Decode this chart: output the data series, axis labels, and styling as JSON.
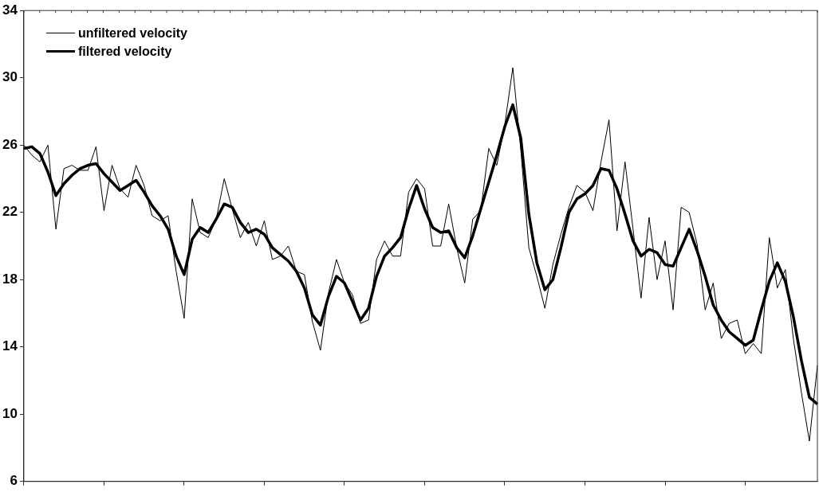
{
  "chart_data": {
    "type": "line",
    "categories": [
      null,
      null,
      null,
      null,
      null,
      null,
      null,
      null,
      null,
      null,
      null,
      null,
      null,
      null,
      null,
      null,
      null,
      null,
      null,
      null,
      null,
      null,
      null,
      null,
      null,
      null,
      null,
      null,
      null,
      null,
      null,
      null,
      null,
      null,
      null,
      null,
      null,
      null,
      null,
      null,
      null,
      null,
      null,
      null,
      null,
      null,
      null,
      null,
      null,
      null,
      null,
      null,
      null,
      null,
      null,
      null,
      null,
      null,
      null,
      null,
      null,
      null,
      null,
      null,
      null,
      null,
      null,
      null,
      null,
      null,
      null,
      null,
      null,
      null,
      null,
      null,
      null,
      null,
      null,
      null,
      null,
      null,
      null,
      null,
      null,
      null,
      null,
      null,
      null,
      null,
      null,
      null,
      null,
      null,
      null,
      null,
      null,
      null,
      null,
      null
    ],
    "series": [
      {
        "name": "unfiltered velocity",
        "color": "#000000",
        "values": [
          26.0,
          25.4,
          25.0,
          26.0,
          21.0,
          24.6,
          24.8,
          24.5,
          24.5,
          25.9,
          22.1,
          24.8,
          23.4,
          22.9,
          24.8,
          23.6,
          21.8,
          21.5,
          21.8,
          18.5,
          15.7,
          22.8,
          20.8,
          20.5,
          21.6,
          24.0,
          22.2,
          20.5,
          21.4,
          20.0,
          21.5,
          19.2,
          19.4,
          20.0,
          18.5,
          18.3,
          15.5,
          13.8,
          17.2,
          19.2,
          17.8,
          17.1,
          15.4,
          15.6,
          19.2,
          20.3,
          19.4,
          19.4,
          23.2,
          24.0,
          23.4,
          20.0,
          20.0,
          22.5,
          19.9,
          17.8,
          21.6,
          22.1,
          25.8,
          24.8,
          27.2,
          30.6,
          25.7,
          19.9,
          18.2,
          16.3,
          18.9,
          20.7,
          22.3,
          23.6,
          23.2,
          22.1,
          25.0,
          27.5,
          20.9,
          25.0,
          21.0,
          16.9,
          21.7,
          18.0,
          20.3,
          16.2,
          22.3,
          22.0,
          20.1,
          16.2,
          17.8,
          14.5,
          15.4,
          15.6,
          13.6,
          14.2,
          13.6,
          20.5,
          17.5,
          18.6,
          14.5,
          11.3,
          8.4,
          12.9
        ]
      },
      {
        "name": "filtered velocity",
        "color": "#000000",
        "values": [
          25.8,
          25.9,
          25.5,
          24.4,
          23.0,
          23.7,
          24.2,
          24.6,
          24.8,
          24.9,
          24.3,
          23.8,
          23.3,
          23.6,
          23.9,
          23.2,
          22.4,
          21.8,
          21.0,
          19.4,
          18.3,
          20.4,
          21.1,
          20.8,
          21.6,
          22.5,
          22.3,
          21.4,
          20.8,
          21.0,
          20.7,
          19.9,
          19.5,
          19.1,
          18.5,
          17.5,
          15.9,
          15.3,
          17.0,
          18.2,
          17.8,
          16.7,
          15.6,
          16.3,
          18.2,
          19.4,
          19.9,
          20.5,
          22.2,
          23.6,
          22.2,
          21.1,
          20.8,
          20.9,
          19.9,
          19.3,
          20.6,
          22.2,
          23.8,
          25.4,
          27.1,
          28.4,
          26.4,
          21.9,
          19.0,
          17.4,
          18.0,
          19.9,
          22.0,
          22.8,
          23.1,
          23.6,
          24.6,
          24.5,
          23.4,
          21.9,
          20.3,
          19.4,
          19.8,
          19.6,
          18.9,
          18.8,
          19.9,
          21.0,
          19.7,
          18.2,
          16.5,
          15.6,
          14.9,
          14.5,
          14.1,
          14.4,
          16.2,
          17.9,
          19.0,
          17.9,
          15.8,
          13.2,
          11.0,
          10.6
        ]
      }
    ],
    "ylim": [
      6,
      34
    ],
    "yticks": [
      6,
      10,
      14,
      18,
      22,
      26,
      30,
      34
    ],
    "grid": false,
    "legend": "top left",
    "marker": "none",
    "line_style": "solid",
    "tick_labels": "y"
  }
}
